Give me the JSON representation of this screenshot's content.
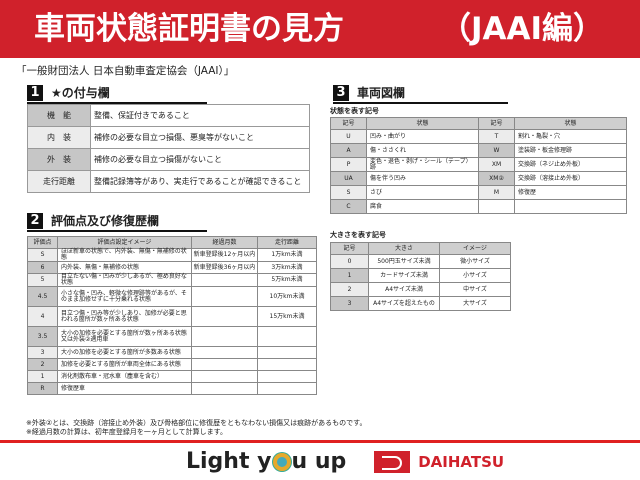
{
  "banner": {
    "title": "車両状態証明書の見方",
    "edition": "（JAAI編）"
  },
  "org": "「一般財団法人 日本自動車査定協会（JAAI）」",
  "section1": {
    "num": "1",
    "title": "★の付与欄",
    "rows": [
      {
        "k": "機　能",
        "v": "整備、保証付きであること"
      },
      {
        "k": "内　装",
        "v": "補修の必要な目立つ損傷、悪臭等がないこと"
      },
      {
        "k": "外　装",
        "v": "補修の必要な目立つ損傷がないこと"
      },
      {
        "k": "走行距離",
        "v": "整備記録簿等があり、実走行であることが確認できること"
      }
    ]
  },
  "section2": {
    "num": "2",
    "title": "評価点及び修復歴欄",
    "headers": [
      "評価点",
      "評価点設定イメージ",
      "経過月数",
      "走行距離"
    ],
    "rows": [
      [
        "S",
        "ほぼ新車の状態で、内外装、無傷・無補修の状態",
        "新車登録後12ヶ月以内",
        "1万km未満"
      ],
      [
        "6",
        "内外装、無傷・無補修の状態",
        "新車登録後36ヶ月以内",
        "3万km未満"
      ],
      [
        "5",
        "目立たない傷・凹みが少しあるが、極め良好な状態",
        "",
        "5万km未満"
      ],
      [
        "4.5",
        "小さな傷・凹み、軽微な修理跡等があるが、そのまま加修せずに十分乗れる状態",
        "",
        "10万km未満"
      ],
      [
        "4",
        "目立つ傷・凹み等が少しあり、加修が必要と思われる箇所が数ヶ所ある状態",
        "",
        "15万km未満"
      ],
      [
        "3.5",
        "大小の加修を必要とする箇所が数ヶ所ある状態又は外装②適用車",
        "",
        ""
      ],
      [
        "3",
        "大小の加修を必要とする箇所が多数ある状態",
        "",
        ""
      ],
      [
        "2",
        "加修を必要とする箇所が車両全体にある状態",
        "",
        ""
      ],
      [
        "1",
        "消化剤散布車・冠水車（塵車を含む）",
        "",
        ""
      ],
      [
        "R",
        "修復歴車",
        "",
        ""
      ]
    ]
  },
  "notes": [
    "※外装②とは、交換跡（溶接止め外装）及び骨格部位に修復歴をともなわない損傷又は痕跡があるものです。",
    "※経過月数の計算は、初年度登録月を一ヶ月として計算します。"
  ],
  "section3": {
    "num": "3",
    "title": "車両図欄",
    "state_label": "状態を表す記号",
    "state_headers": [
      "記号",
      "状態",
      "記号",
      "状態"
    ],
    "state_rows": [
      [
        "U",
        "凹み・曲がり",
        "T",
        "割れ・亀裂・穴"
      ],
      [
        "A",
        "傷・ささくれ",
        "W",
        "塗装跡・板金修理跡"
      ],
      [
        "P",
        "変色・退色・剥げ・シール（テープ）跡",
        "XM",
        "交換跡（ネジ止め外板）"
      ],
      [
        "UA",
        "傷を伴う凹み",
        "XM②",
        "交換跡（溶接止め外板）"
      ],
      [
        "S",
        "さび",
        "M",
        "修復歴"
      ],
      [
        "C",
        "腐食",
        "",
        ""
      ]
    ],
    "size_label": "大きさを表す記号",
    "size_headers": [
      "記号",
      "大きさ",
      "イメージ"
    ],
    "size_rows": [
      [
        "0",
        "500円玉サイズ未満",
        "微小サイズ"
      ],
      [
        "1",
        "カードサイズ未満",
        "小サイズ"
      ],
      [
        "2",
        "A4サイズ未満",
        "中サイズ"
      ],
      [
        "3",
        "A4サイズを超えたもの",
        "大サイズ"
      ]
    ]
  },
  "footer": {
    "slogan_pre": "Light y",
    "slogan_post": "u up",
    "brand": "DAIHATSU"
  },
  "colors": {
    "brand_red": "#d0212b"
  }
}
